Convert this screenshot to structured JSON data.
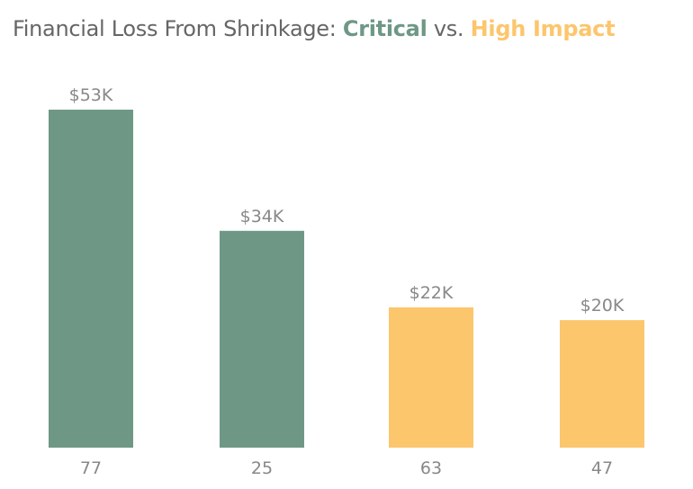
{
  "chart_data": {
    "type": "bar",
    "title": {
      "prefix": "Financial Loss From Shrinkage: ",
      "critical": "Critical",
      "middle": " vs. ",
      "high": "High Impact"
    },
    "categories": [
      "77",
      "25",
      "63",
      "47"
    ],
    "values": [
      53,
      34,
      22,
      20
    ],
    "data_labels": [
      "$53K",
      "$34K",
      "$22K",
      "$20K"
    ],
    "groups": [
      "Critical",
      "Critical",
      "High Impact",
      "High Impact"
    ],
    "unit": "thousands of dollars",
    "ylim": [
      0,
      53
    ],
    "grid": false,
    "colors": {
      "Critical": "#6E9885",
      "High Impact": "#FCC66D"
    }
  }
}
